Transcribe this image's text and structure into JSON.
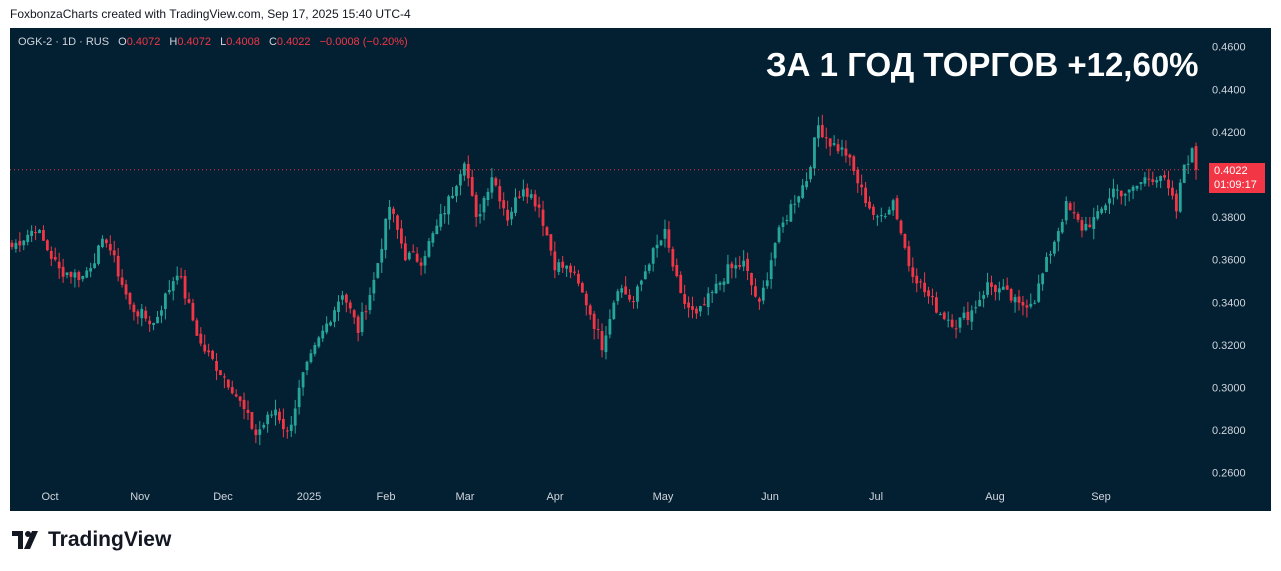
{
  "caption": "FoxbonzaCharts created with TradingView.com, Sep 17, 2025 15:40 UTC-4",
  "legend": {
    "symbol": "OGK-2 · 1D · RUS",
    "o_label": "O",
    "o_value": "0.4072",
    "h_label": "H",
    "h_value": "0.4072",
    "l_label": "L",
    "l_value": "0.4008",
    "c_label": "C",
    "c_value": "0.4022",
    "change": "−0.0008 (−0.20%)"
  },
  "headline": "ЗА 1 ГОД ТОРГОВ +12,60%",
  "price_tag": {
    "price": "0.4022",
    "countdown": "01:09:17"
  },
  "brand": {
    "name": "TradingView",
    "logo_icon": "tradingview-logo-icon"
  },
  "colors": {
    "background": "#032033",
    "up": "#26a69a",
    "down": "#f23645",
    "axis_text": "#d1d4dc",
    "headline": "#ffffff"
  },
  "chart_data": {
    "type": "candlestick",
    "ylim": [
      0.25,
      0.465
    ],
    "yticks": [
      "0.4600",
      "0.4400",
      "0.4200",
      "0.4000",
      "0.3800",
      "0.3600",
      "0.3400",
      "0.3200",
      "0.3000",
      "0.2800",
      "0.2600"
    ],
    "xticks": [
      "Oct",
      "Nov",
      "Dec",
      "2025",
      "Feb",
      "Mar",
      "Apr",
      "May",
      "Jun",
      "Jul",
      "Aug",
      "Sep"
    ],
    "last_price": 0.4022,
    "path_points": [
      [
        0,
        0.366
      ],
      [
        6,
        0.375
      ],
      [
        12,
        0.355
      ],
      [
        18,
        0.352
      ],
      [
        24,
        0.37
      ],
      [
        30,
        0.338
      ],
      [
        36,
        0.33
      ],
      [
        42,
        0.355
      ],
      [
        48,
        0.32
      ],
      [
        56,
        0.3
      ],
      [
        62,
        0.278
      ],
      [
        67,
        0.29
      ],
      [
        70,
        0.278
      ],
      [
        74,
        0.305
      ],
      [
        78,
        0.322
      ],
      [
        84,
        0.345
      ],
      [
        88,
        0.327
      ],
      [
        92,
        0.35
      ],
      [
        96,
        0.385
      ],
      [
        100,
        0.362
      ],
      [
        104,
        0.36
      ],
      [
        108,
        0.375
      ],
      [
        112,
        0.392
      ],
      [
        115,
        0.408
      ],
      [
        118,
        0.378
      ],
      [
        122,
        0.4
      ],
      [
        126,
        0.38
      ],
      [
        130,
        0.395
      ],
      [
        134,
        0.385
      ],
      [
        138,
        0.358
      ],
      [
        142,
        0.355
      ],
      [
        146,
        0.34
      ],
      [
        150,
        0.32
      ],
      [
        154,
        0.348
      ],
      [
        158,
        0.34
      ],
      [
        162,
        0.36
      ],
      [
        166,
        0.372
      ],
      [
        170,
        0.342
      ],
      [
        174,
        0.333
      ],
      [
        178,
        0.344
      ],
      [
        182,
        0.355
      ],
      [
        186,
        0.358
      ],
      [
        190,
        0.338
      ],
      [
        194,
        0.368
      ],
      [
        198,
        0.385
      ],
      [
        202,
        0.398
      ],
      [
        205,
        0.423
      ],
      [
        208,
        0.415
      ],
      [
        212,
        0.41
      ],
      [
        216,
        0.392
      ],
      [
        220,
        0.378
      ],
      [
        224,
        0.388
      ],
      [
        228,
        0.358
      ],
      [
        232,
        0.345
      ],
      [
        236,
        0.335
      ],
      [
        240,
        0.33
      ],
      [
        244,
        0.336
      ],
      [
        248,
        0.348
      ],
      [
        252,
        0.345
      ],
      [
        256,
        0.338
      ],
      [
        260,
        0.342
      ],
      [
        264,
        0.364
      ],
      [
        268,
        0.385
      ],
      [
        272,
        0.375
      ],
      [
        276,
        0.38
      ],
      [
        280,
        0.393
      ],
      [
        284,
        0.391
      ],
      [
        288,
        0.398
      ],
      [
        292,
        0.4
      ],
      [
        294,
        0.392
      ],
      [
        296,
        0.383
      ],
      [
        298,
        0.405
      ],
      [
        300,
        0.41
      ],
      [
        301,
        0.402
      ]
    ],
    "last_index": 301
  }
}
